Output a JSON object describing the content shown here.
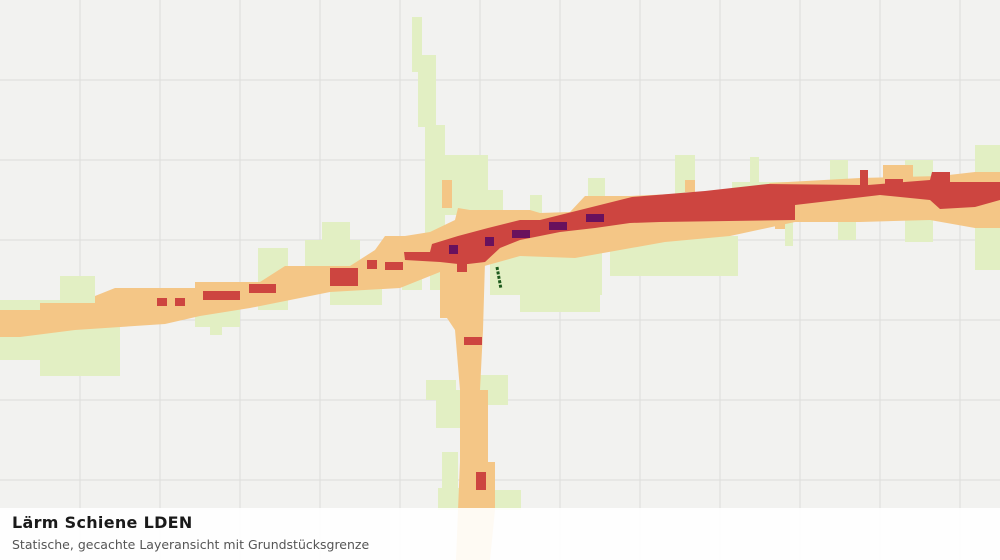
{
  "layer": {
    "title": "Lärm Schiene LDEN",
    "subtitle": "Statische, gecachte Layeransicht mit Grundstücksgrenze"
  }
}
